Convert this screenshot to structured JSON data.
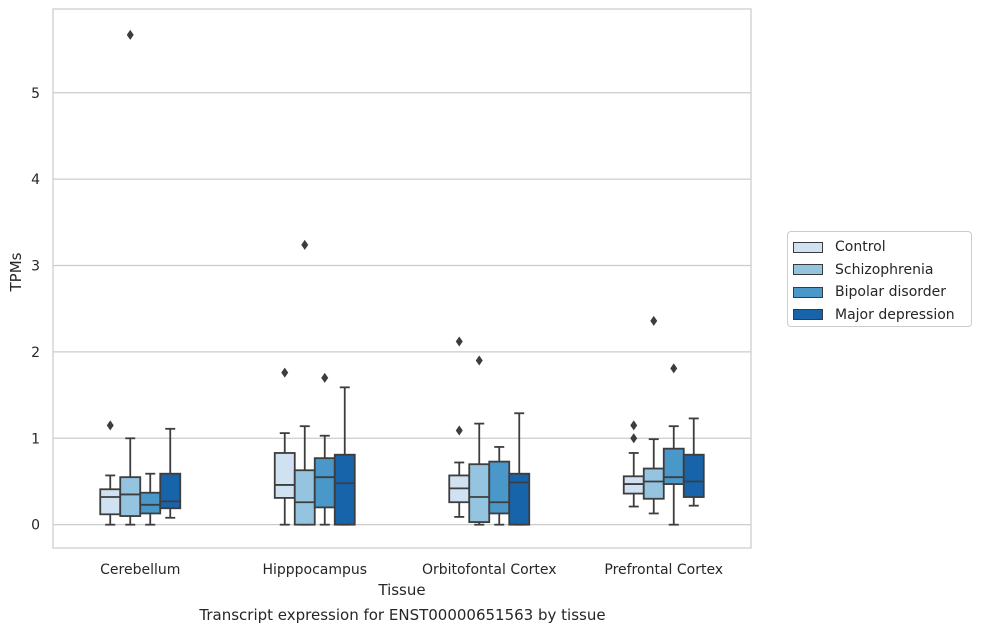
{
  "chart_data": {
    "type": "box",
    "title": "Transcript expression for ENST00000651563 by tissue",
    "xlabel": "Tissue",
    "ylabel": "TPMs",
    "ylim": [
      -0.27,
      5.97
    ],
    "yticks": [
      0,
      1,
      2,
      3,
      4,
      5
    ],
    "grid": "horizontal",
    "legend_position": "right",
    "categories": [
      "Cerebellum",
      "Hipppocampus",
      "Orbitofontal Cortex",
      "Prefrontal Cortex"
    ],
    "series": [
      {
        "name": "Control",
        "color": "#d0e1f2",
        "boxes": [
          {
            "whislo": 0.0,
            "q1": 0.12,
            "med": 0.32,
            "q3": 0.41,
            "whishi": 0.57,
            "fliers": [
              1.15
            ]
          },
          {
            "whislo": 0.0,
            "q1": 0.31,
            "med": 0.46,
            "q3": 0.83,
            "whishi": 1.06,
            "fliers": [
              1.76
            ]
          },
          {
            "whislo": 0.09,
            "q1": 0.26,
            "med": 0.42,
            "q3": 0.57,
            "whishi": 0.72,
            "fliers": [
              1.09,
              2.12
            ]
          },
          {
            "whislo": 0.21,
            "q1": 0.36,
            "med": 0.47,
            "q3": 0.56,
            "whishi": 0.83,
            "fliers": [
              1.0,
              1.15
            ]
          }
        ]
      },
      {
        "name": "Schizophrenia",
        "color": "#94c4df",
        "boxes": [
          {
            "whislo": 0.0,
            "q1": 0.1,
            "med": 0.35,
            "q3": 0.55,
            "whishi": 1.0,
            "fliers": [
              5.67
            ]
          },
          {
            "whislo": 0.0,
            "q1": 0.0,
            "med": 0.26,
            "q3": 0.63,
            "whishi": 1.14,
            "fliers": [
              3.24
            ]
          },
          {
            "whislo": 0.0,
            "q1": 0.03,
            "med": 0.32,
            "q3": 0.7,
            "whishi": 1.17,
            "fliers": [
              1.9
            ]
          },
          {
            "whislo": 0.13,
            "q1": 0.3,
            "med": 0.5,
            "q3": 0.65,
            "whishi": 0.99,
            "fliers": [
              2.36
            ]
          }
        ]
      },
      {
        "name": "Bipolar disorder",
        "color": "#4a98c9",
        "boxes": [
          {
            "whislo": 0.0,
            "q1": 0.13,
            "med": 0.23,
            "q3": 0.37,
            "whishi": 0.59,
            "fliers": []
          },
          {
            "whislo": 0.0,
            "q1": 0.2,
            "med": 0.55,
            "q3": 0.77,
            "whishi": 1.03,
            "fliers": [
              1.7
            ]
          },
          {
            "whislo": 0.0,
            "q1": 0.13,
            "med": 0.26,
            "q3": 0.73,
            "whishi": 0.9,
            "fliers": []
          },
          {
            "whislo": 0.0,
            "q1": 0.47,
            "med": 0.55,
            "q3": 0.88,
            "whishi": 1.14,
            "fliers": [
              1.81
            ]
          }
        ]
      },
      {
        "name": "Major depression",
        "color": "#1764ab",
        "boxes": [
          {
            "whislo": 0.08,
            "q1": 0.19,
            "med": 0.27,
            "q3": 0.59,
            "whishi": 1.11,
            "fliers": []
          },
          {
            "whislo": 0.0,
            "q1": 0.0,
            "med": 0.48,
            "q3": 0.81,
            "whishi": 1.59,
            "fliers": []
          },
          {
            "whislo": 0.0,
            "q1": 0.0,
            "med": 0.49,
            "q3": 0.59,
            "whishi": 1.29,
            "fliers": []
          },
          {
            "whislo": 0.22,
            "q1": 0.32,
            "med": 0.5,
            "q3": 0.81,
            "whishi": 1.23,
            "fliers": []
          }
        ]
      }
    ]
  }
}
